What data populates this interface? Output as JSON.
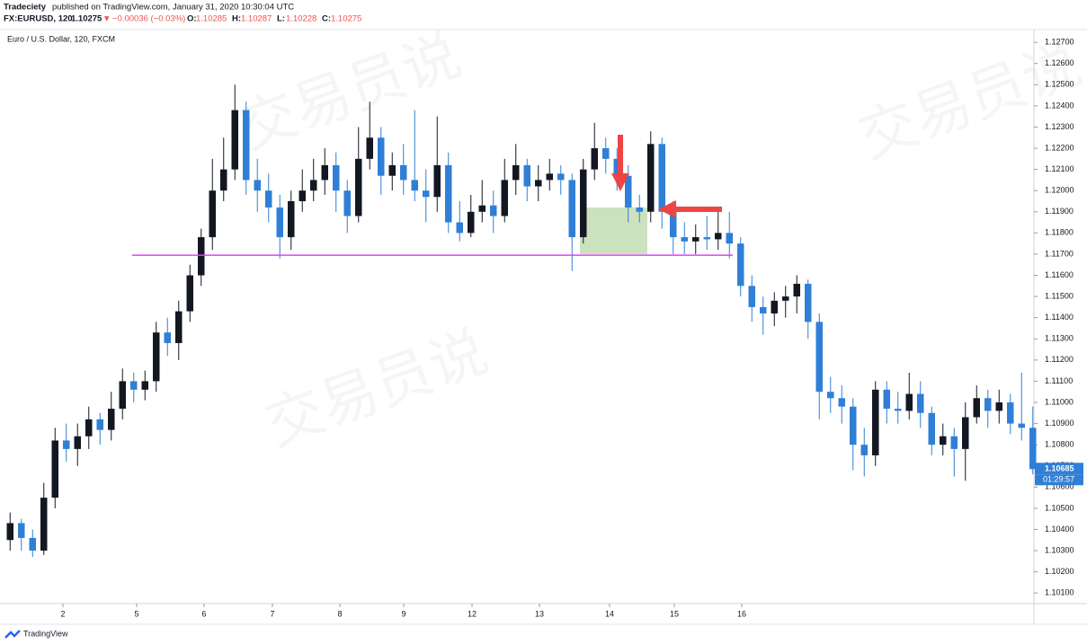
{
  "header": {
    "publisher": "Tradeciety",
    "published": "published on TradingView.com, January 31, 2020 10:30:04 UTC",
    "symbol": "FX:EURUSD, 120",
    "price": "1.10275",
    "change_arrow": "▼",
    "change": "−0.00036 (−0.03%)",
    "ohlc_labels": [
      "O:",
      "H:",
      "L:",
      "C:"
    ],
    "ohlc_values": [
      "1.10285",
      "1.10287",
      "1.10228",
      "1.10275"
    ]
  },
  "footer": {
    "brand": "TradingView"
  },
  "watermark": "交易员说",
  "chart_data": {
    "type": "candlestick",
    "title": "Euro / U.S. Dollar, 120, FXCM",
    "up_color": "#131722",
    "down_color": "#2f7fd6",
    "ohlc": [
      [
        1.1035,
        1.1048,
        1.103,
        1.1043
      ],
      [
        1.1043,
        1.1045,
        1.103,
        1.1036
      ],
      [
        1.1036,
        1.104,
        1.1027,
        1.103
      ],
      [
        1.103,
        1.1062,
        1.1028,
        1.1055
      ],
      [
        1.1055,
        1.1088,
        1.105,
        1.1082
      ],
      [
        1.1082,
        1.109,
        1.1072,
        1.1078
      ],
      [
        1.1078,
        1.109,
        1.107,
        1.1084
      ],
      [
        1.1084,
        1.1098,
        1.1078,
        1.1092
      ],
      [
        1.1092,
        1.1095,
        1.108,
        1.1087
      ],
      [
        1.1087,
        1.1105,
        1.1082,
        1.1097
      ],
      [
        1.1097,
        1.1116,
        1.1092,
        1.111
      ],
      [
        1.111,
        1.1114,
        1.11,
        1.1106
      ],
      [
        1.1106,
        1.1115,
        1.1101,
        1.111
      ],
      [
        1.111,
        1.1138,
        1.1105,
        1.1133
      ],
      [
        1.1133,
        1.114,
        1.1122,
        1.1128
      ],
      [
        1.1128,
        1.1148,
        1.112,
        1.1143
      ],
      [
        1.1143,
        1.1165,
        1.1138,
        1.116
      ],
      [
        1.116,
        1.1182,
        1.1155,
        1.1178
      ],
      [
        1.1178,
        1.1215,
        1.1172,
        1.12
      ],
      [
        1.12,
        1.1225,
        1.1195,
        1.121
      ],
      [
        1.121,
        1.125,
        1.1205,
        1.1238
      ],
      [
        1.1238,
        1.1242,
        1.1198,
        1.1205
      ],
      [
        1.1205,
        1.1215,
        1.119,
        1.12
      ],
      [
        1.12,
        1.1208,
        1.1185,
        1.1192
      ],
      [
        1.1192,
        1.1198,
        1.1168,
        1.1178
      ],
      [
        1.1178,
        1.12,
        1.1172,
        1.1195
      ],
      [
        1.1195,
        1.121,
        1.119,
        1.12
      ],
      [
        1.12,
        1.1215,
        1.1195,
        1.1205
      ],
      [
        1.1205,
        1.122,
        1.1198,
        1.1212
      ],
      [
        1.1212,
        1.1218,
        1.119,
        1.12
      ],
      [
        1.12,
        1.1205,
        1.118,
        1.1188
      ],
      [
        1.1188,
        1.123,
        1.1185,
        1.1215
      ],
      [
        1.1215,
        1.1242,
        1.121,
        1.1225
      ],
      [
        1.1225,
        1.123,
        1.1198,
        1.1207
      ],
      [
        1.1207,
        1.1218,
        1.12,
        1.1212
      ],
      [
        1.1212,
        1.1222,
        1.1198,
        1.1205
      ],
      [
        1.1205,
        1.1238,
        1.1195,
        1.12
      ],
      [
        1.12,
        1.121,
        1.1185,
        1.1197
      ],
      [
        1.1197,
        1.1235,
        1.119,
        1.1212
      ],
      [
        1.1212,
        1.1218,
        1.118,
        1.1185
      ],
      [
        1.1185,
        1.1195,
        1.1176,
        1.118
      ],
      [
        1.118,
        1.1198,
        1.1178,
        1.119
      ],
      [
        1.119,
        1.1205,
        1.1185,
        1.1193
      ],
      [
        1.1193,
        1.12,
        1.118,
        1.1188
      ],
      [
        1.1188,
        1.1215,
        1.1185,
        1.1205
      ],
      [
        1.1205,
        1.1222,
        1.1198,
        1.1212
      ],
      [
        1.1212,
        1.1215,
        1.1195,
        1.1202
      ],
      [
        1.1202,
        1.1212,
        1.1195,
        1.1205
      ],
      [
        1.1205,
        1.1215,
        1.12,
        1.1208
      ],
      [
        1.1208,
        1.1212,
        1.1198,
        1.1205
      ],
      [
        1.1205,
        1.1208,
        1.1162,
        1.1178
      ],
      [
        1.1178,
        1.1215,
        1.1175,
        1.121
      ],
      [
        1.121,
        1.1232,
        1.1205,
        1.122
      ],
      [
        1.122,
        1.1225,
        1.1208,
        1.1215
      ],
      [
        1.1215,
        1.122,
        1.12,
        1.1207
      ],
      [
        1.1207,
        1.1212,
        1.1185,
        1.1192
      ],
      [
        1.1192,
        1.1198,
        1.1185,
        1.119
      ],
      [
        1.119,
        1.1228,
        1.1185,
        1.1222
      ],
      [
        1.1222,
        1.1225,
        1.1182,
        1.119
      ],
      [
        1.119,
        1.1195,
        1.117,
        1.1178
      ],
      [
        1.1178,
        1.1185,
        1.117,
        1.1176
      ],
      [
        1.1176,
        1.1184,
        1.117,
        1.1178
      ],
      [
        1.1178,
        1.1188,
        1.1172,
        1.1177
      ],
      [
        1.1177,
        1.119,
        1.1172,
        1.118
      ],
      [
        1.118,
        1.119,
        1.1168,
        1.1175
      ],
      [
        1.1175,
        1.1178,
        1.115,
        1.1155
      ],
      [
        1.1155,
        1.116,
        1.1138,
        1.1145
      ],
      [
        1.1145,
        1.115,
        1.1132,
        1.1142
      ],
      [
        1.1142,
        1.1152,
        1.1136,
        1.1148
      ],
      [
        1.1148,
        1.1155,
        1.114,
        1.115
      ],
      [
        1.115,
        1.116,
        1.1142,
        1.1156
      ],
      [
        1.1156,
        1.1158,
        1.113,
        1.1138
      ],
      [
        1.1138,
        1.1142,
        1.1092,
        1.1105
      ],
      [
        1.1105,
        1.1112,
        1.1095,
        1.1102
      ],
      [
        1.1102,
        1.1108,
        1.109,
        1.1098
      ],
      [
        1.1098,
        1.1102,
        1.1068,
        1.108
      ],
      [
        1.108,
        1.1088,
        1.1065,
        1.1075
      ],
      [
        1.1075,
        1.111,
        1.107,
        1.1106
      ],
      [
        1.1106,
        1.111,
        1.109,
        1.1097
      ],
      [
        1.1097,
        1.1105,
        1.109,
        1.1096
      ],
      [
        1.1096,
        1.1114,
        1.1092,
        1.1104
      ],
      [
        1.1104,
        1.111,
        1.1088,
        1.1095
      ],
      [
        1.1095,
        1.1098,
        1.1075,
        1.108
      ],
      [
        1.108,
        1.109,
        1.1075,
        1.1084
      ],
      [
        1.1084,
        1.1088,
        1.1065,
        1.1078
      ],
      [
        1.1078,
        1.11,
        1.1063,
        1.1093
      ],
      [
        1.1093,
        1.1108,
        1.109,
        1.1102
      ],
      [
        1.1102,
        1.1106,
        1.1088,
        1.1096
      ],
      [
        1.1096,
        1.1106,
        1.109,
        1.11
      ],
      [
        1.11,
        1.1104,
        1.1085,
        1.109
      ],
      [
        1.109,
        1.1114,
        1.1082,
        1.1088
      ],
      [
        1.1088,
        1.1098,
        1.1066,
        1.10685
      ]
    ],
    "xlim": [
      0,
      92
    ],
    "xticks": [
      {
        "value": 5.2,
        "label": "2"
      },
      {
        "value": 11.76,
        "label": "5"
      },
      {
        "value": 17.76,
        "label": "6"
      },
      {
        "value": 23.84,
        "label": "7"
      },
      {
        "value": 29.84,
        "label": "8"
      },
      {
        "value": 35.52,
        "label": "9"
      },
      {
        "value": 41.6,
        "label": "12"
      },
      {
        "value": 47.6,
        "label": "13"
      },
      {
        "value": 53.84,
        "label": "14"
      },
      {
        "value": 59.6,
        "label": "15"
      },
      {
        "value": 65.6,
        "label": "16"
      }
    ],
    "ylim": [
      1.1005,
      1.1276
    ],
    "yticks": [
      {
        "value": 1.127,
        "label": "1.12700"
      },
      {
        "value": 1.126,
        "label": "1.12600"
      },
      {
        "value": 1.125,
        "label": "1.12500"
      },
      {
        "value": 1.124,
        "label": "1.12400"
      },
      {
        "value": 1.123,
        "label": "1.12300"
      },
      {
        "value": 1.122,
        "label": "1.12200"
      },
      {
        "value": 1.121,
        "label": "1.12100"
      },
      {
        "value": 1.12,
        "label": "1.12000"
      },
      {
        "value": 1.119,
        "label": "1.11900"
      },
      {
        "value": 1.118,
        "label": "1.11800"
      },
      {
        "value": 1.117,
        "label": "1.11700"
      },
      {
        "value": 1.116,
        "label": "1.11600"
      },
      {
        "value": 1.115,
        "label": "1.11500"
      },
      {
        "value": 1.114,
        "label": "1.11400"
      },
      {
        "value": 1.113,
        "label": "1.11300"
      },
      {
        "value": 1.112,
        "label": "1.11200"
      },
      {
        "value": 1.111,
        "label": "1.11100"
      },
      {
        "value": 1.11,
        "label": "1.11000"
      },
      {
        "value": 1.109,
        "label": "1.10900"
      },
      {
        "value": 1.108,
        "label": "1.10800"
      },
      {
        "value": 1.107,
        "label": "1.10700"
      },
      {
        "value": 1.106,
        "label": "1.10600"
      },
      {
        "value": 1.105,
        "label": "1.10500"
      },
      {
        "value": 1.104,
        "label": "1.10400"
      },
      {
        "value": 1.103,
        "label": "1.10300"
      },
      {
        "value": 1.102,
        "label": "1.10200"
      },
      {
        "value": 1.101,
        "label": "1.10100"
      }
    ],
    "level": {
      "value": 1.11695,
      "from": 11.36,
      "to": 64.8,
      "color": "#e040fb"
    },
    "zone": {
      "low": 1.117,
      "high": 1.1192,
      "from": 51.2,
      "to": 57.2,
      "color": "#8fbf6e"
    },
    "countdown": "01:29:57"
  }
}
